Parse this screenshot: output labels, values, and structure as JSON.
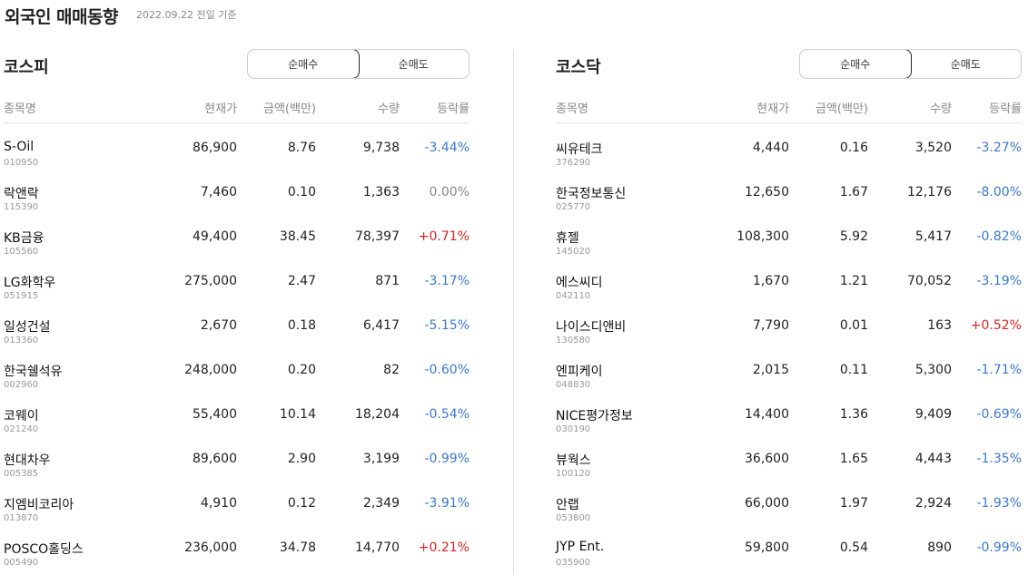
{
  "header": {
    "title": "외국인 매매동향",
    "subtitle": "2022.09.22 전일 기준"
  },
  "columns": {
    "name": "종목명",
    "price": "현재가",
    "amount": "금액(백만)",
    "qty": "수량",
    "rate": "등락률"
  },
  "kospi": {
    "title": "코스피",
    "tabs": [
      "순매수",
      "순매도"
    ],
    "rows": [
      {
        "name": "S-Oil",
        "code": "010950",
        "price": "86,900",
        "amount": "8.76",
        "qty": "9,738",
        "rate": "-3.44%",
        "dir": "down"
      },
      {
        "name": "락앤락",
        "code": "115390",
        "price": "7,460",
        "amount": "0.10",
        "qty": "1,363",
        "rate": "0.00%",
        "dir": "flat"
      },
      {
        "name": "KB금융",
        "code": "105560",
        "price": "49,400",
        "amount": "38.45",
        "qty": "78,397",
        "rate": "+0.71%",
        "dir": "up"
      },
      {
        "name": "LG화학우",
        "code": "051915",
        "price": "275,000",
        "amount": "2.47",
        "qty": "871",
        "rate": "-3.17%",
        "dir": "down"
      },
      {
        "name": "일성건설",
        "code": "013360",
        "price": "2,670",
        "amount": "0.18",
        "qty": "6,417",
        "rate": "-5.15%",
        "dir": "down"
      },
      {
        "name": "한국쉘석유",
        "code": "002960",
        "price": "248,000",
        "amount": "0.20",
        "qty": "82",
        "rate": "-0.60%",
        "dir": "down"
      },
      {
        "name": "코웨이",
        "code": "021240",
        "price": "55,400",
        "amount": "10.14",
        "qty": "18,204",
        "rate": "-0.54%",
        "dir": "down"
      },
      {
        "name": "현대차우",
        "code": "005385",
        "price": "89,600",
        "amount": "2.90",
        "qty": "3,199",
        "rate": "-0.99%",
        "dir": "down"
      },
      {
        "name": "지엠비코리아",
        "code": "013870",
        "price": "4,910",
        "amount": "0.12",
        "qty": "2,349",
        "rate": "-3.91%",
        "dir": "down"
      },
      {
        "name": "POSCO홀딩스",
        "code": "005490",
        "price": "236,000",
        "amount": "34.78",
        "qty": "14,770",
        "rate": "+0.21%",
        "dir": "up"
      }
    ]
  },
  "kosdaq": {
    "title": "코스닥",
    "tabs": [
      "순매수",
      "순매도"
    ],
    "rows": [
      {
        "name": "씨유테크",
        "code": "376290",
        "price": "4,440",
        "amount": "0.16",
        "qty": "3,520",
        "rate": "-3.27%",
        "dir": "down"
      },
      {
        "name": "한국정보통신",
        "code": "025770",
        "price": "12,650",
        "amount": "1.67",
        "qty": "12,176",
        "rate": "-8.00%",
        "dir": "down"
      },
      {
        "name": "휴젤",
        "code": "145020",
        "price": "108,300",
        "amount": "5.92",
        "qty": "5,417",
        "rate": "-0.82%",
        "dir": "down"
      },
      {
        "name": "에스씨디",
        "code": "042110",
        "price": "1,670",
        "amount": "1.21",
        "qty": "70,052",
        "rate": "-3.19%",
        "dir": "down"
      },
      {
        "name": "나이스디앤비",
        "code": "130580",
        "price": "7,790",
        "amount": "0.01",
        "qty": "163",
        "rate": "+0.52%",
        "dir": "up"
      },
      {
        "name": "엔피케이",
        "code": "048830",
        "price": "2,015",
        "amount": "0.11",
        "qty": "5,300",
        "rate": "-1.71%",
        "dir": "down"
      },
      {
        "name": "NICE평가정보",
        "code": "030190",
        "price": "14,400",
        "amount": "1.36",
        "qty": "9,409",
        "rate": "-0.69%",
        "dir": "down"
      },
      {
        "name": "뷰웍스",
        "code": "100120",
        "price": "36,600",
        "amount": "1.65",
        "qty": "4,443",
        "rate": "-1.35%",
        "dir": "down"
      },
      {
        "name": "안랩",
        "code": "053800",
        "price": "66,000",
        "amount": "1.97",
        "qty": "2,924",
        "rate": "-1.93%",
        "dir": "down"
      },
      {
        "name": "JYP Ent.",
        "code": "035900",
        "price": "59,800",
        "amount": "0.54",
        "qty": "890",
        "rate": "-0.99%",
        "dir": "down"
      }
    ]
  },
  "colors": {
    "down": "#3a78d6",
    "up": "#e02020",
    "flat": "#888888"
  }
}
